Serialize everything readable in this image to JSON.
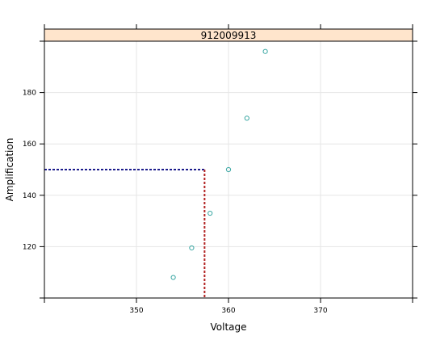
{
  "chart_data": {
    "type": "scatter",
    "panel_label": "912009913",
    "xlabel": "Voltage",
    "ylabel": "Amplification",
    "xlim": [
      340,
      380
    ],
    "ylim": [
      100,
      200
    ],
    "xticks": [
      350,
      360,
      370
    ],
    "yticks": [
      120,
      140,
      160,
      180
    ],
    "grid": true,
    "points": [
      {
        "x": 354,
        "y": 108
      },
      {
        "x": 356,
        "y": 119.5
      },
      {
        "x": 358,
        "y": 133
      },
      {
        "x": 360,
        "y": 150
      },
      {
        "x": 362,
        "y": 170
      },
      {
        "x": 364,
        "y": 196
      }
    ],
    "reference": {
      "x": 357.4,
      "y": 150
    },
    "colors": {
      "points": "#3aa7a3",
      "horizontal_reference": "#1c1c8c",
      "vertical_reference": "#b22222",
      "strip": "#ffe5cc",
      "grid": "#e6e6e6"
    }
  }
}
